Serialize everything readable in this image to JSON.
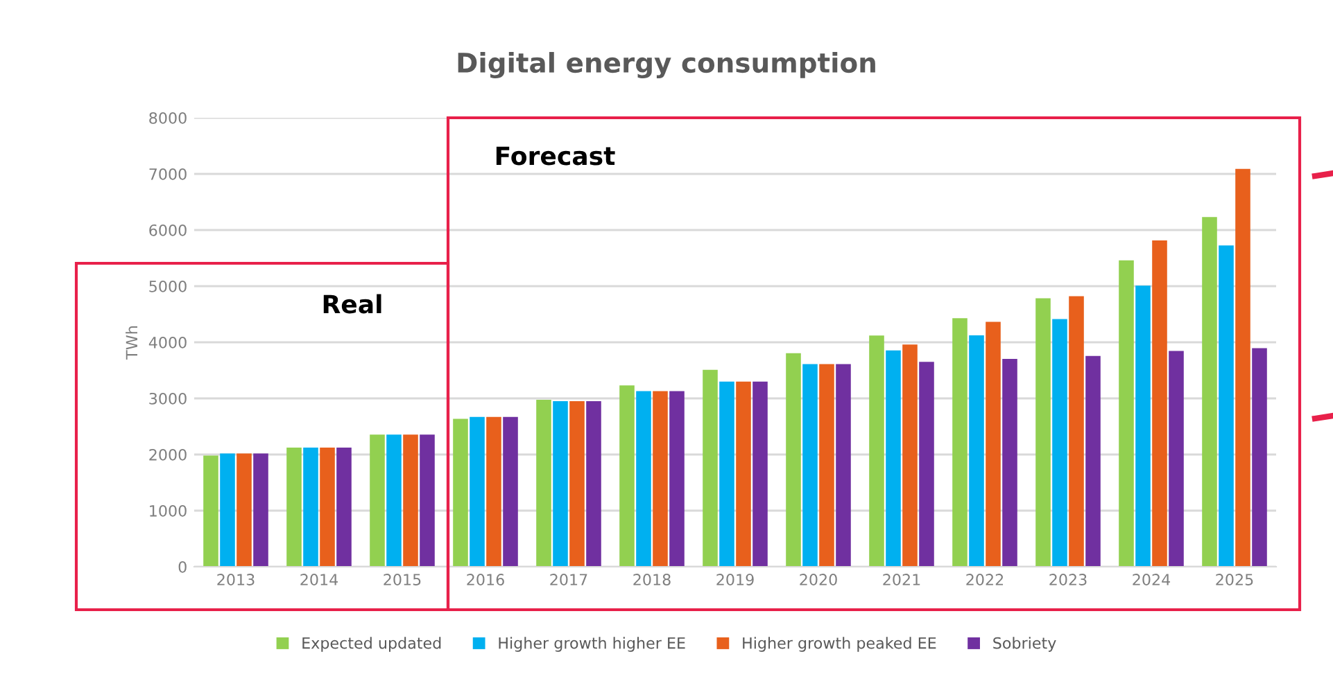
{
  "chart_data": {
    "type": "bar",
    "title": "Digital energy consumption",
    "ylabel": "TWh",
    "categories": [
      "2013",
      "2014",
      "2015",
      "2016",
      "2017",
      "2018",
      "2019",
      "2020",
      "2021",
      "2022",
      "2023",
      "2024",
      "2025"
    ],
    "series": [
      {
        "name": "Expected updated",
        "color": "#92d050",
        "values": [
          1980,
          2125,
          2355,
          2635,
          2975,
          3230,
          3510,
          3805,
          4120,
          4430,
          4785,
          5460,
          6230
        ]
      },
      {
        "name": "Higher growth higher EE",
        "color": "#00b0f0",
        "values": [
          2020,
          2125,
          2355,
          2670,
          2950,
          3130,
          3300,
          3610,
          3855,
          4125,
          4415,
          5010,
          5725
        ]
      },
      {
        "name": "Higher growth peaked EE",
        "color": "#e8601c",
        "values": [
          2020,
          2125,
          2355,
          2670,
          2950,
          3130,
          3300,
          3610,
          3960,
          4365,
          4820,
          5815,
          7090
        ]
      },
      {
        "name": "Sobriety",
        "color": "#7030a0",
        "values": [
          2020,
          2125,
          2355,
          2670,
          2950,
          3130,
          3300,
          3610,
          3650,
          3705,
          3755,
          3845,
          3895
        ]
      }
    ],
    "ylim": [
      0,
      8000
    ],
    "yticks": [
      0,
      1000,
      2000,
      3000,
      4000,
      5000,
      6000,
      7000,
      8000
    ],
    "grid": "y",
    "legend": "bottom",
    "annotations": [
      "Real",
      "Forecast"
    ]
  }
}
